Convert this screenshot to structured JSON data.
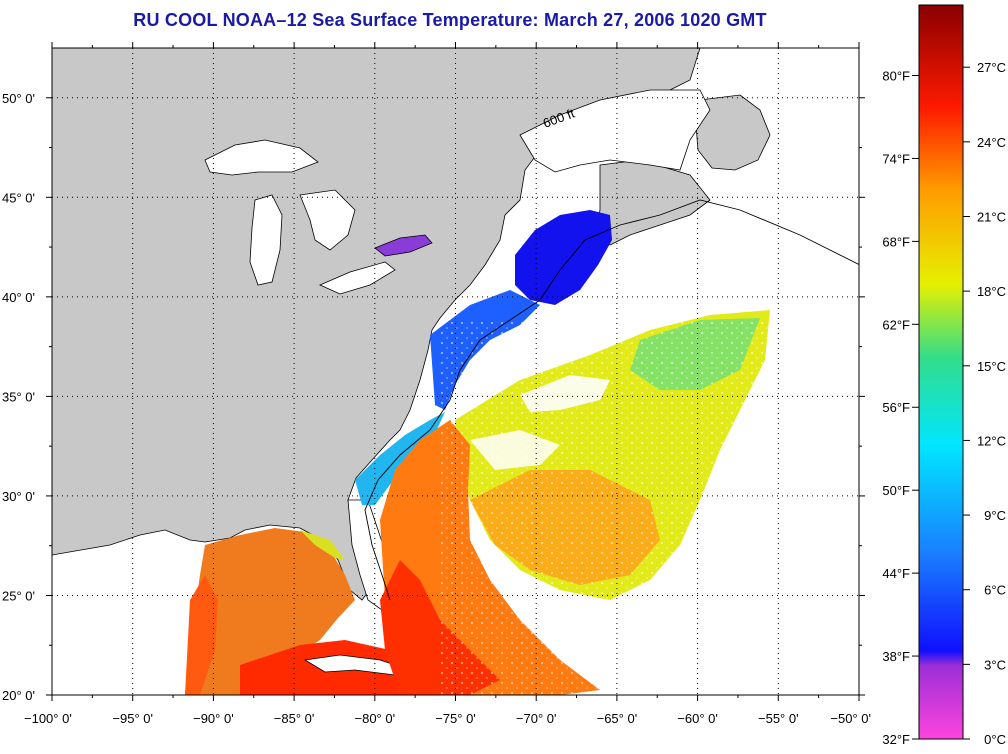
{
  "title": "RU COOL  NOAA–12  Sea Surface Temperature:  March 27, 2006 1020 GMT",
  "map": {
    "lon_range": [
      -100,
      -50
    ],
    "lat_range": [
      20,
      52.5
    ],
    "lon_ticks": [
      {
        "value": -100,
        "label": "−100° 0'"
      },
      {
        "value": -95,
        "label": "−95° 0'"
      },
      {
        "value": -90,
        "label": "−90° 0'"
      },
      {
        "value": -85,
        "label": "−85° 0'"
      },
      {
        "value": -80,
        "label": "−80° 0'"
      },
      {
        "value": -75,
        "label": "−75° 0'"
      },
      {
        "value": -70,
        "label": "−70° 0'"
      },
      {
        "value": -65,
        "label": "−65° 0'"
      },
      {
        "value": -60,
        "label": "−60° 0'"
      },
      {
        "value": -55,
        "label": "−55° 0'"
      },
      {
        "value": -50,
        "label": "−50° 0'"
      }
    ],
    "lat_ticks": [
      {
        "value": 20,
        "label": "20° 0'"
      },
      {
        "value": 25,
        "label": "25° 0'"
      },
      {
        "value": 30,
        "label": "30° 0'"
      },
      {
        "value": 35,
        "label": "35° 0'"
      },
      {
        "value": 40,
        "label": "40° 0'"
      },
      {
        "value": 45,
        "label": "45° 0'"
      },
      {
        "value": 50,
        "label": "50° 0'"
      }
    ],
    "contour_label": "600 ft",
    "colors": {
      "land": "#c8c8c8",
      "water_nodata": "#ffffff",
      "grid": "#000000"
    }
  },
  "colorbar": {
    "fahrenheit": [
      {
        "value": 32,
        "label": "32°F"
      },
      {
        "value": 38,
        "label": "38°F"
      },
      {
        "value": 44,
        "label": "44°F"
      },
      {
        "value": 50,
        "label": "50°F"
      },
      {
        "value": 56,
        "label": "56°F"
      },
      {
        "value": 62,
        "label": "62°F"
      },
      {
        "value": 68,
        "label": "68°F"
      },
      {
        "value": 74,
        "label": "74°F"
      },
      {
        "value": 80,
        "label": "80°F"
      }
    ],
    "celsius": [
      {
        "value": 0,
        "label": "0°C"
      },
      {
        "value": 3,
        "label": "3°C"
      },
      {
        "value": 6,
        "label": "6°C"
      },
      {
        "value": 9,
        "label": "9°C"
      },
      {
        "value": 12,
        "label": "12°C"
      },
      {
        "value": 15,
        "label": "15°C"
      },
      {
        "value": 18,
        "label": "18°C"
      },
      {
        "value": 21,
        "label": "21°C"
      },
      {
        "value": 24,
        "label": "24°C"
      },
      {
        "value": 27,
        "label": "27°C"
      }
    ],
    "range_c": [
      0,
      29.5
    ],
    "color_stops": [
      "#ff44dd",
      "#9a2fd6",
      "#1010ff",
      "#1a7cff",
      "#00e6ff",
      "#33dd88",
      "#e6f000",
      "#ff9a00",
      "#ff1a00",
      "#8a0000"
    ]
  }
}
